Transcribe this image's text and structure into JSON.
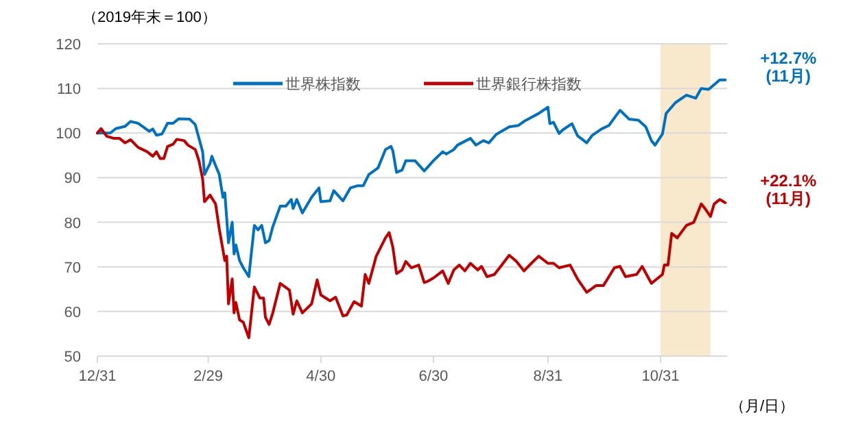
{
  "chart_data": {
    "type": "line",
    "ylabel": "（2019年末＝100）",
    "xlabel": "（月/日）",
    "xlim": [
      "2019-12-31",
      "2020-12-06"
    ],
    "ylim": [
      50,
      120
    ],
    "xticks": [
      {
        "value": "2019-12-31",
        "label": "12/31"
      },
      {
        "value": "2020-02-29",
        "label": "2/29"
      },
      {
        "value": "2020-04-30",
        "label": "4/30"
      },
      {
        "value": "2020-06-30",
        "label": "6/30"
      },
      {
        "value": "2020-08-31",
        "label": "8/31"
      },
      {
        "value": "2020-10-31",
        "label": "10/31"
      }
    ],
    "yticks": [
      50,
      60,
      70,
      80,
      90,
      100,
      110,
      120
    ],
    "grid": "y",
    "legend": "top",
    "bands": [
      {
        "axis": "x",
        "from": "2020-10-31",
        "to": "2020-11-27",
        "color": "#f8e8cc"
      }
    ],
    "annotations": [
      {
        "text": "+12.7%\n(11月)",
        "x": "2020-12-05",
        "y": 111.9
      },
      {
        "text": "+22.1%\n(11月)",
        "x": "2020-12-05",
        "y": 84.4
      }
    ],
    "series": [
      {
        "name": "世界株指数",
        "color": "#0070c0",
        "x": [
          "2019-12-31",
          "2020-01-07",
          "2020-01-10",
          "2020-01-15",
          "2020-01-18",
          "2020-01-22",
          "2020-01-28",
          "2020-01-30",
          "2020-02-01",
          "2020-02-04",
          "2020-02-07",
          "2020-02-10",
          "2020-02-13",
          "2020-02-19",
          "2020-02-22",
          "2020-02-24",
          "2020-02-26",
          "2020-02-27",
          "2020-03-01",
          "2020-03-02",
          "2020-03-04",
          "2020-03-06",
          "2020-03-08",
          "2020-03-09",
          "2020-03-11",
          "2020-03-13",
          "2020-03-14",
          "2020-03-15",
          "2020-03-17",
          "2020-03-19",
          "2020-03-22",
          "2020-03-25",
          "2020-03-27",
          "2020-03-29",
          "2020-03-31",
          "2020-04-02",
          "2020-04-04",
          "2020-04-08",
          "2020-04-11",
          "2020-04-14",
          "2020-04-15",
          "2020-04-17",
          "2020-04-20",
          "2020-04-25",
          "2020-04-29",
          "2020-04-30",
          "2020-05-05",
          "2020-05-07",
          "2020-05-12",
          "2020-05-16",
          "2020-05-20",
          "2020-05-23",
          "2020-05-26",
          "2020-05-31",
          "2020-06-04",
          "2020-06-07",
          "2020-06-08",
          "2020-06-10",
          "2020-06-13",
          "2020-06-15",
          "2020-06-20",
          "2020-06-22",
          "2020-06-25",
          "2020-06-30",
          "2020-07-05",
          "2020-07-07",
          "2020-07-11",
          "2020-07-13",
          "2020-07-20",
          "2020-07-23",
          "2020-07-27",
          "2020-07-30",
          "2020-08-03",
          "2020-08-10",
          "2020-08-15",
          "2020-08-18",
          "2020-08-26",
          "2020-08-31",
          "2020-09-01",
          "2020-09-03",
          "2020-09-06",
          "2020-09-08",
          "2020-09-13",
          "2020-09-16",
          "2020-09-21",
          "2020-09-24",
          "2020-09-29",
          "2020-10-03",
          "2020-10-06",
          "2020-10-09",
          "2020-10-14",
          "2020-10-19",
          "2020-10-23",
          "2020-10-26",
          "2020-10-28",
          "2020-11-01",
          "2020-11-03",
          "2020-11-08",
          "2020-11-14",
          "2020-11-19",
          "2020-11-22",
          "2020-11-26",
          "2020-12-02",
          "2020-12-05"
        ],
        "values": [
          100,
          100,
          101,
          101.5,
          102.6,
          102.2,
          100.4,
          100.9,
          99.5,
          99.8,
          102.2,
          102.2,
          103.2,
          103.1,
          101.9,
          98.8,
          95.8,
          90.7,
          93.2,
          94.8,
          92.7,
          90.7,
          85.6,
          86.6,
          75.4,
          80,
          72.9,
          74.9,
          71.4,
          69.8,
          67.8,
          79.3,
          78.3,
          79.3,
          75.4,
          75.9,
          79,
          83.6,
          83.6,
          85.1,
          83.1,
          85.1,
          82.1,
          85.6,
          87.7,
          84.6,
          84.8,
          87.1,
          84.8,
          87.7,
          88.2,
          88.2,
          90.7,
          92.2,
          96.3,
          97,
          96,
          91.2,
          91.7,
          93.8,
          93.8,
          92.9,
          91.5,
          93.8,
          95.8,
          95.3,
          96.3,
          97.3,
          98.8,
          97.3,
          98.3,
          97.8,
          99.7,
          101.4,
          101.7,
          102.6,
          104.4,
          105.8,
          102.1,
          102.4,
          99.9,
          100.7,
          102.1,
          99.4,
          97.8,
          99.5,
          100.9,
          101.7,
          103.4,
          105.1,
          103.1,
          102.9,
          101.4,
          98.3,
          97.3,
          99.8,
          104.4,
          106.8,
          108.5,
          107.8,
          110,
          109.8,
          111.9,
          111.9
        ]
      },
      {
        "name": "世界銀行株指数",
        "color": "#c00000",
        "x": [
          "2019-12-31",
          "2020-01-02",
          "2020-01-05",
          "2020-01-09",
          "2020-01-12",
          "2020-01-15",
          "2020-01-18",
          "2020-01-22",
          "2020-01-27",
          "2020-01-30",
          "2020-02-01",
          "2020-02-03",
          "2020-02-05",
          "2020-02-07",
          "2020-02-10",
          "2020-02-12",
          "2020-02-16",
          "2020-02-18",
          "2020-02-22",
          "2020-02-24",
          "2020-02-26",
          "2020-02-27",
          "2020-03-01",
          "2020-03-04",
          "2020-03-06",
          "2020-03-09",
          "2020-03-10",
          "2020-03-11",
          "2020-03-13",
          "2020-03-14",
          "2020-03-15",
          "2020-03-17",
          "2020-03-19",
          "2020-03-22",
          "2020-03-25",
          "2020-03-28",
          "2020-03-30",
          "2020-03-31",
          "2020-04-02",
          "2020-04-04",
          "2020-04-08",
          "2020-04-13",
          "2020-04-15",
          "2020-04-17",
          "2020-04-20",
          "2020-04-25",
          "2020-04-28",
          "2020-04-30",
          "2020-05-05",
          "2020-05-08",
          "2020-05-12",
          "2020-05-14",
          "2020-05-18",
          "2020-05-22",
          "2020-05-24",
          "2020-05-26",
          "2020-05-30",
          "2020-06-04",
          "2020-06-06",
          "2020-06-08",
          "2020-06-10",
          "2020-06-13",
          "2020-06-15",
          "2020-06-18",
          "2020-06-22",
          "2020-06-25",
          "2020-06-27",
          "2020-06-30",
          "2020-07-05",
          "2020-07-08",
          "2020-07-11",
          "2020-07-14",
          "2020-07-17",
          "2020-07-20",
          "2020-07-24",
          "2020-07-26",
          "2020-07-29",
          "2020-08-02",
          "2020-08-06",
          "2020-08-10",
          "2020-08-14",
          "2020-08-18",
          "2020-08-22",
          "2020-08-26",
          "2020-08-31",
          "2020-09-03",
          "2020-09-06",
          "2020-09-12",
          "2020-09-16",
          "2020-09-21",
          "2020-09-26",
          "2020-09-30",
          "2020-10-06",
          "2020-10-09",
          "2020-10-12",
          "2020-10-18",
          "2020-10-21",
          "2020-10-26",
          "2020-11-01",
          "2020-11-02",
          "2020-11-04",
          "2020-11-06",
          "2020-11-09",
          "2020-11-14",
          "2020-11-18",
          "2020-11-22",
          "2020-11-24",
          "2020-11-27",
          "2020-11-29",
          "2020-12-02",
          "2020-12-05"
        ],
        "values": [
          100,
          101,
          99.3,
          98.8,
          98.8,
          97.8,
          98.5,
          96.8,
          95.8,
          94.8,
          95.8,
          94.3,
          94.3,
          97,
          97.5,
          98.6,
          98.3,
          97.3,
          96.3,
          93.8,
          89.7,
          84.6,
          86.1,
          84.1,
          78.5,
          71.4,
          72.4,
          61.7,
          67.3,
          59.7,
          62,
          58.1,
          57.6,
          54.1,
          65.5,
          63,
          63,
          58.7,
          57.1,
          59.7,
          66.3,
          64.8,
          59.4,
          62.4,
          59.7,
          61.7,
          67.1,
          63.7,
          62.4,
          63.2,
          59,
          59.2,
          62.2,
          61.2,
          68.3,
          66.3,
          72.4,
          76.5,
          77.7,
          74.4,
          68.5,
          69.3,
          71.2,
          69.8,
          70.4,
          66.5,
          66.8,
          67.5,
          69.1,
          66.3,
          69.3,
          70.4,
          69.1,
          70.8,
          69.3,
          70.1,
          67.8,
          68.3,
          70.4,
          72.6,
          71.2,
          69.1,
          70.8,
          72.4,
          70.8,
          70.8,
          69.8,
          70.4,
          67.3,
          64.3,
          65.8,
          65.8,
          69.8,
          70.1,
          67.8,
          68.3,
          70.1,
          66.3,
          68.3,
          70.4,
          70.4,
          77.5,
          76.5,
          79.3,
          80,
          84.1,
          83.1,
          81.3,
          84.1,
          85.1,
          84.4
        ]
      }
    ]
  }
}
